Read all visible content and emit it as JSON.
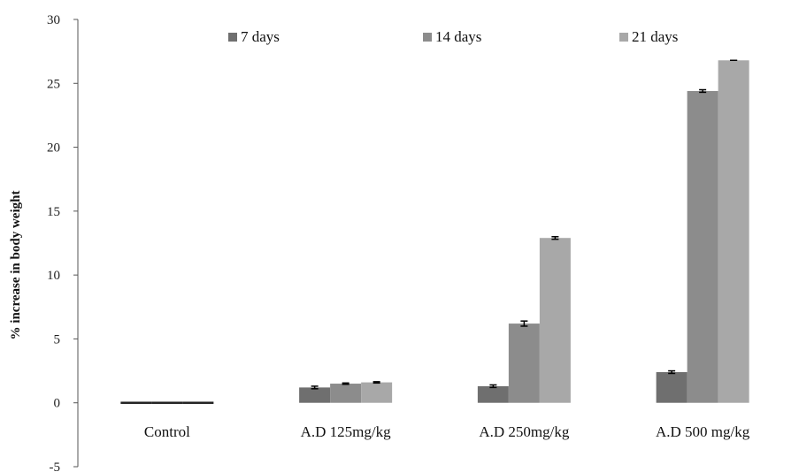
{
  "chart_data": {
    "type": "bar",
    "title": "",
    "xlabel": "",
    "ylabel": "% increase in body weight",
    "ylim": [
      -5,
      30
    ],
    "yticks": [
      -5,
      0,
      5,
      10,
      15,
      20,
      25,
      30
    ],
    "grid": false,
    "legend_position": "top",
    "categories": [
      "Control",
      "A.D 125mg/kg",
      "A.D 250mg/kg",
      "A.D 500 mg/kg"
    ],
    "series": [
      {
        "name": "7 days",
        "color": "#6f6f6f",
        "values": [
          0.0,
          1.2,
          1.3,
          2.4
        ],
        "errors": [
          0.1,
          0.1,
          0.1,
          0.1
        ]
      },
      {
        "name": "14 days",
        "color": "#8c8c8c",
        "values": [
          0.0,
          1.5,
          6.2,
          24.4
        ],
        "errors": [
          0.05,
          0.05,
          0.2,
          0.1
        ]
      },
      {
        "name": "21 days",
        "color": "#a8a8a8",
        "values": [
          0.0,
          1.6,
          12.9,
          26.8
        ],
        "errors": [
          0.05,
          0.05,
          0.1,
          0.0
        ]
      }
    ]
  }
}
